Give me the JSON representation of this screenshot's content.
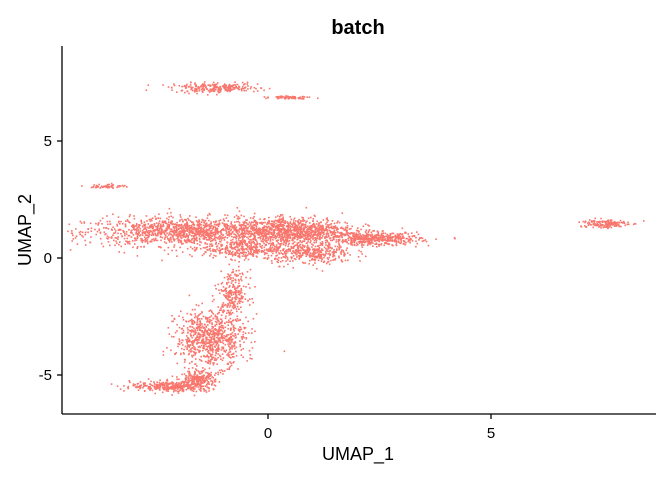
{
  "chart_data": {
    "type": "scatter",
    "title": "batch",
    "xlabel": "UMAP_1",
    "ylabel": "UMAP_2",
    "xlim": [
      -9.2,
      17.5
    ],
    "ylim": [
      -6.7,
      9.1
    ],
    "x_ticks": [
      0,
      5
    ],
    "y_ticks": [
      -5,
      0,
      5
    ],
    "x_tick_labels": [
      "0",
      "5"
    ],
    "y_tick_labels": [
      "-5",
      "0",
      "5"
    ],
    "grid": false,
    "legend": "none",
    "point_color": "#F8766D",
    "series": [
      {
        "clusters": [
          {
            "cx": -1.7,
            "cy": 1.15,
            "rx": 2.2,
            "ry": 0.55,
            "n": 1400
          },
          {
            "cx": -0.6,
            "cy": 0.4,
            "rx": 0.8,
            "ry": 0.35,
            "n": 300
          },
          {
            "cx": 0.6,
            "cy": 1.2,
            "rx": 1.2,
            "ry": 0.5,
            "n": 900
          },
          {
            "cx": 0.9,
            "cy": 0.25,
            "rx": 0.9,
            "ry": 0.45,
            "n": 400
          },
          {
            "cx": -0.8,
            "cy": -1.5,
            "rx": 0.3,
            "ry": 0.9,
            "n": 250
          },
          {
            "cx": -1.3,
            "cy": -3.4,
            "rx": 0.7,
            "ry": 1.1,
            "n": 800
          },
          {
            "cx": -1.6,
            "cy": -5.2,
            "rx": 0.35,
            "ry": 0.35,
            "n": 250
          },
          {
            "cx": -2.2,
            "cy": -5.45,
            "rx": 0.8,
            "ry": 0.2,
            "n": 300
          },
          {
            "cx": 2.4,
            "cy": 0.85,
            "rx": 0.9,
            "ry": 0.25,
            "n": 450
          },
          {
            "cx": -3.6,
            "cy": 3.1,
            "rx": 0.35,
            "ry": 0.08,
            "n": 60
          },
          {
            "cx": -1.2,
            "cy": 7.3,
            "rx": 0.9,
            "ry": 0.18,
            "n": 250
          },
          {
            "cx": 0.5,
            "cy": 6.9,
            "rx": 0.4,
            "ry": 0.06,
            "n": 70
          },
          {
            "cx": 7.5,
            "cy": 1.5,
            "rx": 0.5,
            "ry": 0.18,
            "n": 150
          }
        ]
      }
    ]
  }
}
